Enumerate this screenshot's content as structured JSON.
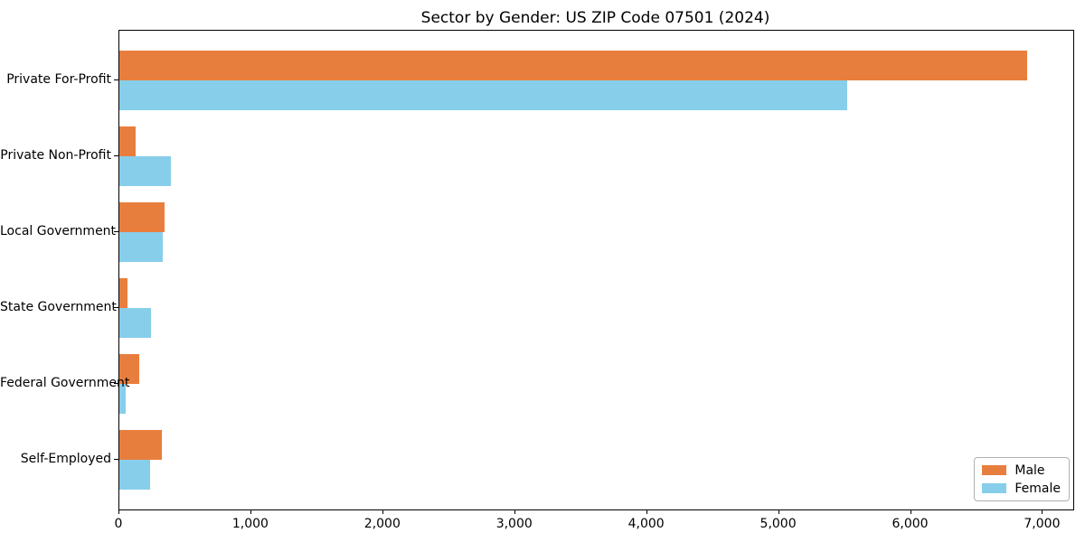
{
  "chart_data": {
    "type": "bar",
    "orientation": "horizontal",
    "title": "Sector by Gender: US ZIP Code 07501 (2024)",
    "categories": [
      "Private For-Profit",
      "Private Non-Profit",
      "Local Government",
      "State Government",
      "Federal Government",
      "Self-Employed"
    ],
    "series": [
      {
        "name": "Male",
        "color": "#e87e3d",
        "values": [
          6880,
          120,
          340,
          60,
          150,
          320
        ]
      },
      {
        "name": "Female",
        "color": "#87ceeb",
        "values": [
          5520,
          390,
          330,
          240,
          50,
          230
        ]
      }
    ],
    "xlabel": "",
    "ylabel": "",
    "xlim": [
      0,
      7230
    ],
    "x_ticks": [
      0,
      1000,
      2000,
      3000,
      4000,
      5000,
      6000,
      7000
    ],
    "x_tick_labels": [
      "0",
      "1,000",
      "2,000",
      "3,000",
      "4,000",
      "5,000",
      "6,000",
      "7,000"
    ],
    "grid": false,
    "background_color": "#ffffff",
    "axis_color": "#000000",
    "legend_position": "lower right",
    "legend_labels": [
      "Male",
      "Female"
    ]
  }
}
